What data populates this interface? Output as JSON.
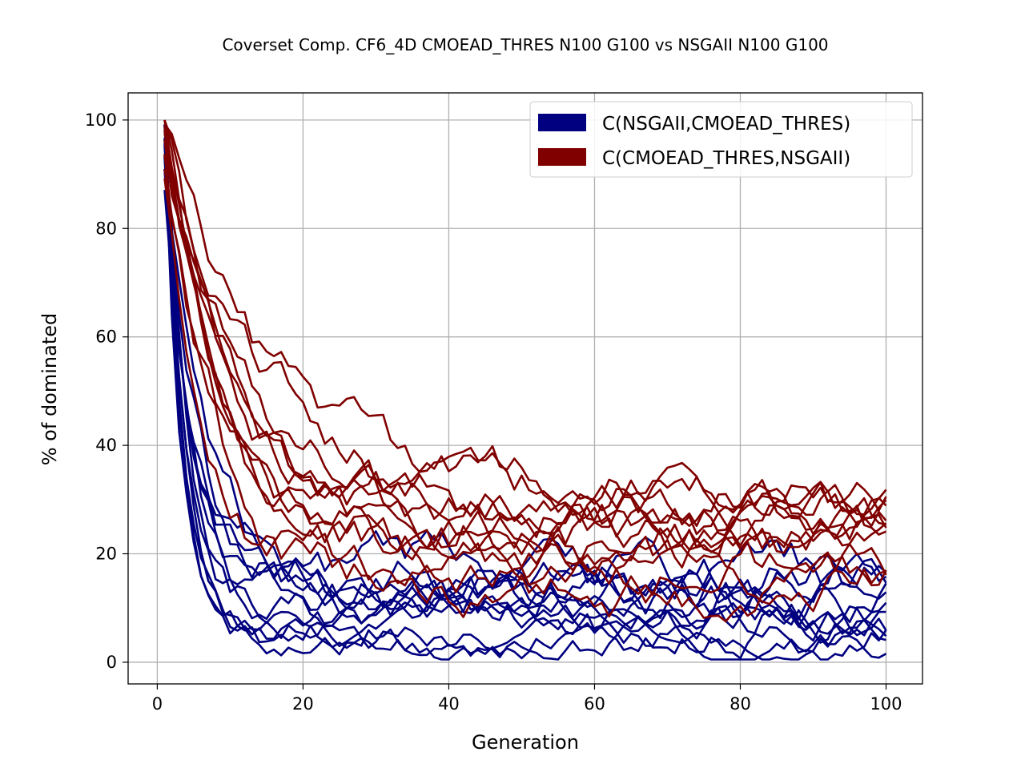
{
  "chart_data": {
    "type": "line",
    "title": "Coverset Comp. CF6_4D CMOEAD_THRES N100 G100 vs NSGAII N100 G100",
    "xlabel": "Generation",
    "ylabel": "% of dominated",
    "xlim": [
      -4,
      105
    ],
    "ylim": [
      -4,
      105
    ],
    "x_ticks": [
      0,
      20,
      40,
      60,
      80,
      100
    ],
    "y_ticks": [
      0,
      20,
      40,
      60,
      80,
      100
    ],
    "grid": true,
    "legend_position": "top-right",
    "legend": [
      {
        "label": "C(NSGAII,CMOEAD_THRES)",
        "color": "#000080"
      },
      {
        "label": "C(CMOEAD_THRES,NSGAII)",
        "color": "#800000"
      }
    ],
    "series_groups": [
      {
        "color": "#000080",
        "curves": [
          {
            "start": 97,
            "k": 0.3,
            "plateau": 8,
            "noise": 2.5,
            "seed": 11
          },
          {
            "start": 95,
            "k": 0.35,
            "plateau": 6,
            "noise": 2.5,
            "seed": 12
          },
          {
            "start": 96,
            "k": 0.22,
            "plateau": 15,
            "noise": 3.0,
            "seed": 13
          },
          {
            "start": 93,
            "k": 0.28,
            "plateau": 10,
            "noise": 2.5,
            "seed": 14
          },
          {
            "start": 98,
            "k": 0.4,
            "plateau": 5,
            "noise": 2.0,
            "seed": 15
          },
          {
            "start": 90,
            "k": 0.25,
            "plateau": 13,
            "noise": 3.0,
            "seed": 16
          },
          {
            "start": 97,
            "k": 0.33,
            "plateau": 9,
            "noise": 2.5,
            "seed": 17
          },
          {
            "start": 94,
            "k": 0.2,
            "plateau": 17,
            "noise": 3.0,
            "seed": 18
          },
          {
            "start": 96,
            "k": 0.45,
            "plateau": 7,
            "noise": 2.0,
            "seed": 19
          },
          {
            "start": 89,
            "k": 0.27,
            "plateau": 11,
            "noise": 2.5,
            "seed": 20
          },
          {
            "start": 98,
            "k": 0.31,
            "plateau": 4,
            "noise": 2.0,
            "seed": 21
          },
          {
            "start": 92,
            "k": 0.24,
            "plateau": 14,
            "noise": 3.0,
            "seed": 22
          }
        ]
      },
      {
        "color": "#800000",
        "curves": [
          {
            "start": 99,
            "k": 0.1,
            "plateau": 30,
            "noise": 3.0,
            "seed": 31
          },
          {
            "start": 97,
            "k": 0.12,
            "plateau": 24,
            "noise": 3.0,
            "seed": 32
          },
          {
            "start": 98,
            "k": 0.09,
            "plateau": 28,
            "noise": 3.0,
            "seed": 33
          },
          {
            "start": 96,
            "k": 0.14,
            "plateau": 20,
            "noise": 3.0,
            "seed": 34
          },
          {
            "start": 99,
            "k": 0.08,
            "plateau": 32,
            "noise": 3.0,
            "seed": 35
          },
          {
            "start": 95,
            "k": 0.11,
            "plateau": 22,
            "noise": 3.0,
            "seed": 36
          },
          {
            "start": 98,
            "k": 0.13,
            "plateau": 26,
            "noise": 3.0,
            "seed": 37
          },
          {
            "start": 93,
            "k": 0.16,
            "plateau": 16,
            "noise": 3.0,
            "seed": 38
          },
          {
            "start": 100,
            "k": 0.07,
            "plateau": 29,
            "noise": 3.0,
            "seed": 39
          },
          {
            "start": 97,
            "k": 0.12,
            "plateau": 19,
            "noise": 3.0,
            "seed": 40
          },
          {
            "start": 99,
            "k": 0.1,
            "plateau": 25,
            "noise": 3.0,
            "seed": 41
          },
          {
            "start": 92,
            "k": 0.18,
            "plateau": 14,
            "noise": 3.0,
            "seed": 42
          }
        ]
      }
    ]
  }
}
